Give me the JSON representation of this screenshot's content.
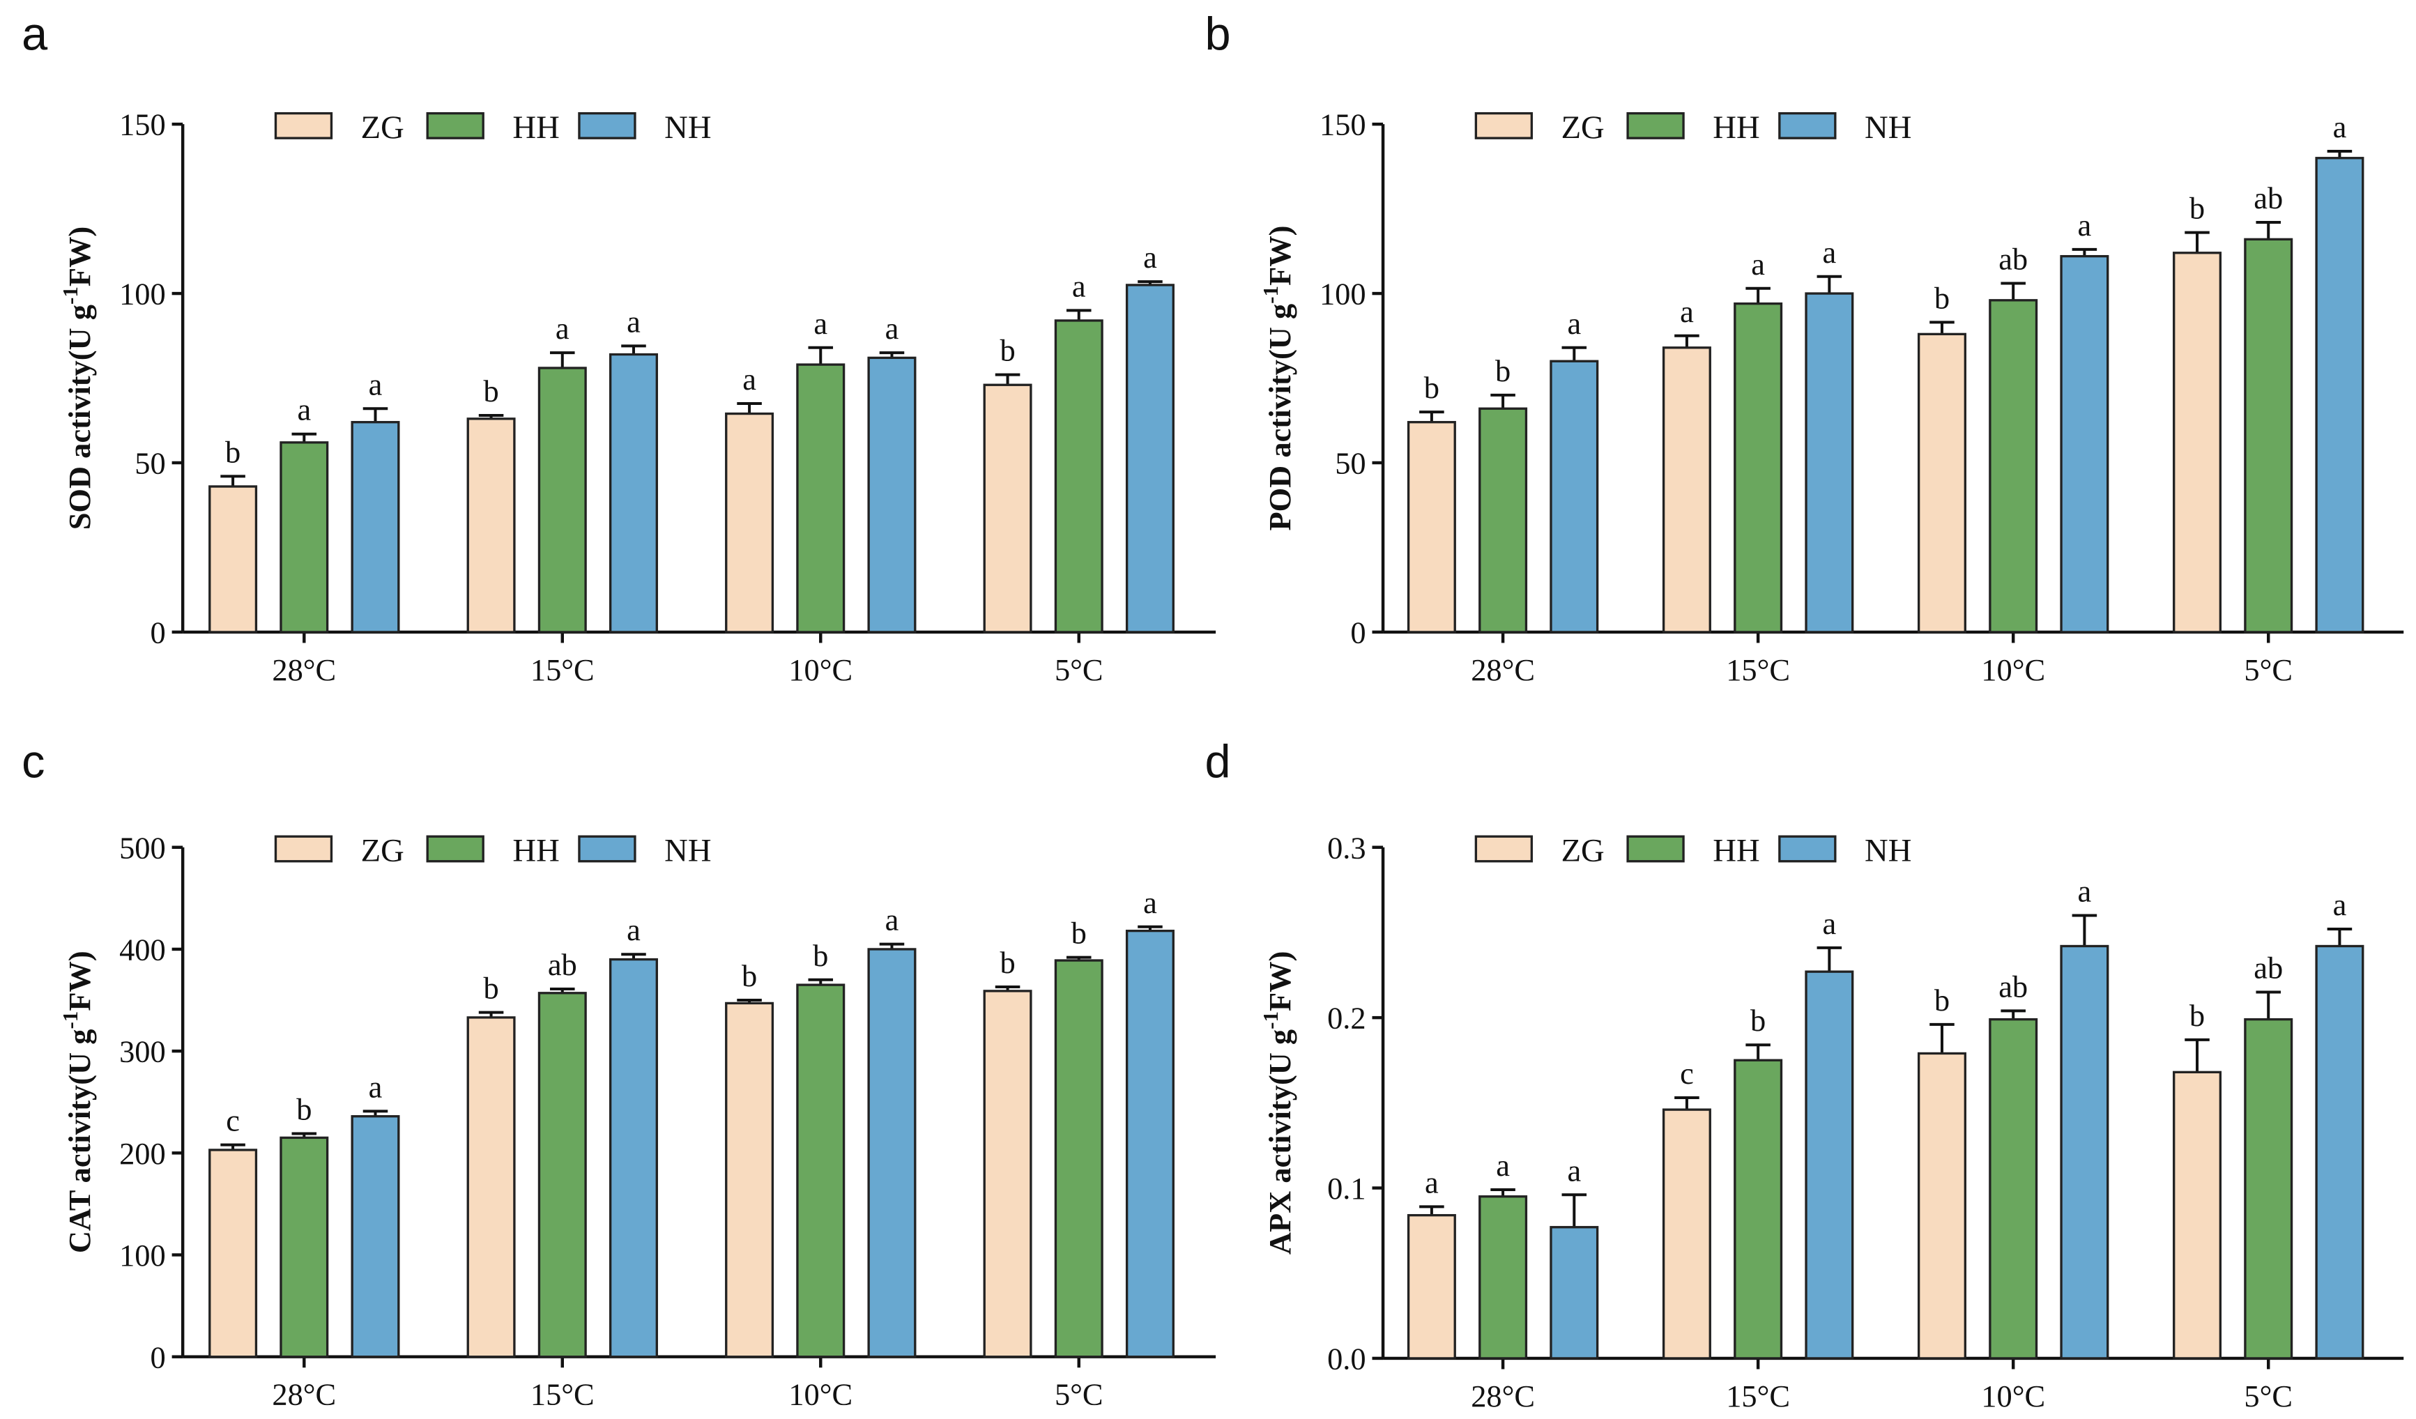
{
  "colors": {
    "ZG": "#f8dbbf",
    "HH": "#6aa75e",
    "NH": "#68a8d0",
    "axis": "#111111"
  },
  "legend": [
    "ZG",
    "HH",
    "NH"
  ],
  "chart_data": [
    {
      "panel": "a",
      "type": "bar",
      "categories": [
        "28°C",
        "15°C",
        "10°C",
        "5°C"
      ],
      "ylabel": {
        "prefix": "SOD activity(U g",
        "sup": "-1",
        "suffix": "FW)"
      },
      "ylim": [
        0,
        150
      ],
      "yticks": [
        0,
        50,
        100,
        150
      ],
      "ytick_labels": [
        "0",
        "50",
        "100",
        "150"
      ],
      "series": [
        {
          "name": "ZG",
          "values": [
            43,
            63,
            64.5,
            73
          ],
          "errors": [
            3,
            1,
            3,
            3
          ],
          "letters": [
            "b",
            "b",
            "a",
            "b"
          ]
        },
        {
          "name": "HH",
          "values": [
            56,
            78,
            79,
            92
          ],
          "errors": [
            2.5,
            4.5,
            5,
            3
          ],
          "letters": [
            "a",
            "a",
            "a",
            "a"
          ]
        },
        {
          "name": "NH",
          "values": [
            62,
            82,
            81,
            102.5
          ],
          "errors": [
            4,
            2.5,
            1.5,
            1
          ],
          "letters": [
            "a",
            "a",
            "a",
            "a"
          ]
        }
      ]
    },
    {
      "panel": "b",
      "type": "bar",
      "categories": [
        "28°C",
        "15°C",
        "10°C",
        "5°C"
      ],
      "ylabel": {
        "prefix": "POD activity(U g",
        "sup": "-1",
        "suffix": "FW)"
      },
      "ylim": [
        0,
        150
      ],
      "yticks": [
        0,
        50,
        100,
        150
      ],
      "ytick_labels": [
        "0",
        "50",
        "100",
        "150"
      ],
      "series": [
        {
          "name": "ZG",
          "values": [
            62,
            84,
            88,
            112
          ],
          "errors": [
            3,
            3.5,
            3.5,
            6
          ],
          "letters": [
            "b",
            "a",
            "b",
            "b"
          ]
        },
        {
          "name": "HH",
          "values": [
            66,
            97,
            98,
            116
          ],
          "errors": [
            4,
            4.5,
            5,
            5
          ],
          "letters": [
            "b",
            "a",
            "ab",
            "ab"
          ]
        },
        {
          "name": "NH",
          "values": [
            80,
            100,
            111,
            140
          ],
          "errors": [
            4,
            5,
            2,
            2
          ],
          "letters": [
            "a",
            "a",
            "a",
            "a"
          ]
        }
      ]
    },
    {
      "panel": "c",
      "type": "bar",
      "categories": [
        "28°C",
        "15°C",
        "10°C",
        "5°C"
      ],
      "ylabel": {
        "prefix": "CAT activity(U g",
        "sup": "-1",
        "suffix": "FW)"
      },
      "ylim": [
        0,
        500
      ],
      "yticks": [
        0,
        100,
        200,
        300,
        400,
        500
      ],
      "ytick_labels": [
        "0",
        "100",
        "200",
        "300",
        "400",
        "500"
      ],
      "series": [
        {
          "name": "ZG",
          "values": [
            203,
            333,
            347,
            359
          ],
          "errors": [
            5,
            5,
            3,
            4
          ],
          "letters": [
            "c",
            "b",
            "b",
            "b"
          ]
        },
        {
          "name": "HH",
          "values": [
            215,
            357,
            365,
            389
          ],
          "errors": [
            4,
            4,
            5,
            3
          ],
          "letters": [
            "b",
            "ab",
            "b",
            "b"
          ]
        },
        {
          "name": "NH",
          "values": [
            236,
            390,
            400,
            418
          ],
          "errors": [
            5,
            5,
            5,
            4
          ],
          "letters": [
            "a",
            "a",
            "a",
            "a"
          ]
        }
      ]
    },
    {
      "panel": "d",
      "type": "bar",
      "categories": [
        "28°C",
        "15°C",
        "10°C",
        "5°C"
      ],
      "ylabel": {
        "prefix": "APX activity(U g",
        "sup": "-1",
        "suffix": "FW)"
      },
      "ylim": [
        0,
        0.3
      ],
      "yticks": [
        0,
        0.1,
        0.2,
        0.3
      ],
      "ytick_labels": [
        "0.0",
        "0.1",
        "0.2",
        "0.3"
      ],
      "series": [
        {
          "name": "ZG",
          "values": [
            0.084,
            0.146,
            0.179,
            0.168
          ],
          "errors": [
            0.005,
            0.007,
            0.017,
            0.019
          ],
          "letters": [
            "a",
            "c",
            "b",
            "b"
          ]
        },
        {
          "name": "HH",
          "values": [
            0.095,
            0.175,
            0.199,
            0.199
          ],
          "errors": [
            0.004,
            0.009,
            0.005,
            0.016
          ],
          "letters": [
            "a",
            "b",
            "ab",
            "ab"
          ]
        },
        {
          "name": "NH",
          "values": [
            0.077,
            0.227,
            0.242,
            0.242
          ],
          "errors": [
            0.019,
            0.014,
            0.018,
            0.01
          ],
          "letters": [
            "a",
            "a",
            "a",
            "a"
          ]
        }
      ]
    }
  ]
}
